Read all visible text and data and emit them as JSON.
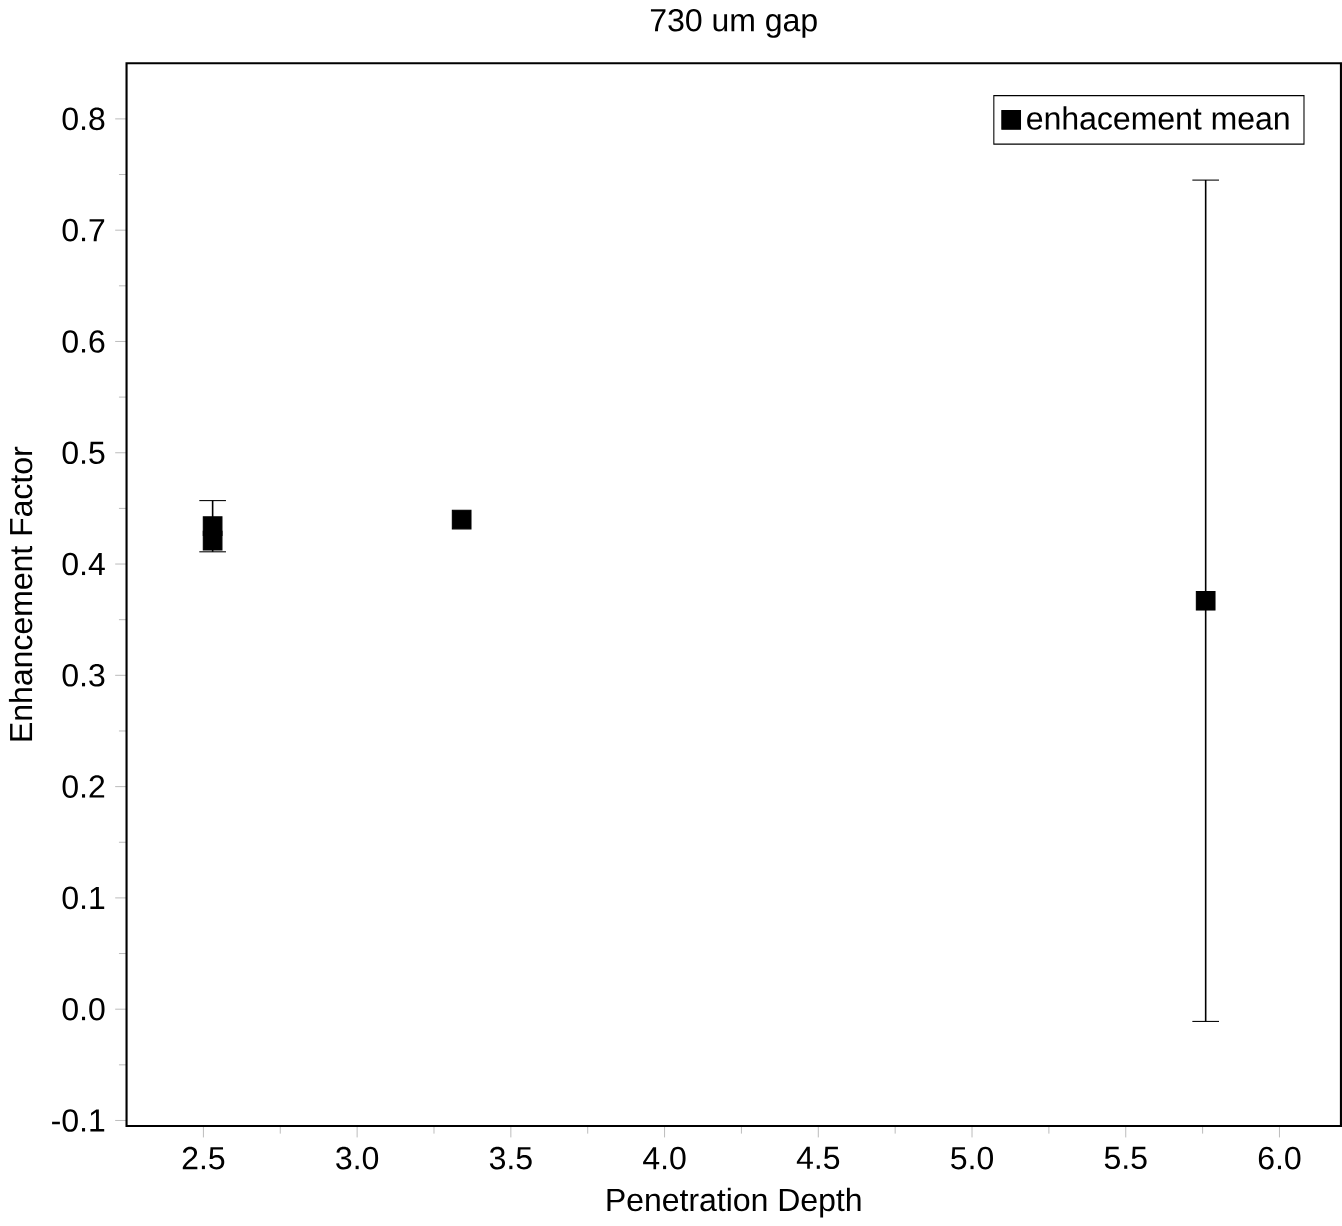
{
  "chart_data": {
    "type": "scatter",
    "title": "730 um gap",
    "xlabel": "Penetration Depth",
    "ylabel": "Enhancement Factor",
    "x": [
      2.53,
      2.53,
      3.34,
      5.76
    ],
    "series": [
      {
        "name": "enhacement mean",
        "color": "#000000",
        "values": [
          0.434,
          0.421,
          0.44,
          0.367
        ],
        "errors": [
          0.023,
          null,
          null,
          0.378
        ]
      }
    ],
    "xlim": [
      2.25,
      6.2
    ],
    "ylim": [
      -0.105,
      0.85
    ],
    "xticks": [
      2.5,
      {
        "value": 3,
        "label": "3.0"
      },
      3.5,
      {
        "value": 4,
        "label": "4.0"
      },
      4.5,
      {
        "value": 5,
        "label": "5.0"
      },
      5.5,
      {
        "value": 6,
        "label": "6.0"
      }
    ],
    "yticks": [
      -0.1,
      {
        "value": 0,
        "label": "0.0"
      },
      0.1,
      0.2,
      0.3,
      0.4,
      0.5,
      0.6,
      0.7,
      0.8
    ],
    "marker": "square",
    "legend": "top right",
    "grid": false
  }
}
